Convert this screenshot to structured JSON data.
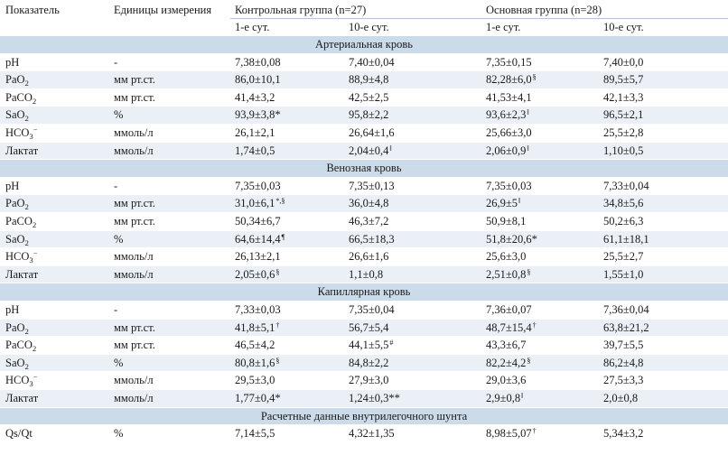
{
  "header": {
    "col_indicator": "Показатель",
    "col_units": "Единицы измерения",
    "group_control": "Контрольная группа (n=27)",
    "group_main": "Основная группа (n=28)",
    "day1": "1-е сут.",
    "day10": "10-е сут."
  },
  "sections": [
    {
      "title": "Артериальная кровь",
      "rows": [
        {
          "param": "pH",
          "sub": "",
          "sup": "",
          "unit": "-",
          "c1": "7,38±0,08",
          "c1m": "",
          "c10": "7,40±0,04",
          "c10m": "",
          "m1": "7,35±0,15",
          "m1m": "",
          "m10": "7,40±0,0",
          "m10m": ""
        },
        {
          "param": "PaO",
          "sub": "2",
          "sup": "",
          "unit": "мм рт.ст.",
          "c1": "86,0±10,1",
          "c1m": "",
          "c10": "88,9±4,8",
          "c10m": "",
          "m1": "82,28±6,0",
          "m1m": "§",
          "m10": "89,5±5,7",
          "m10m": ""
        },
        {
          "param": "PaCO",
          "sub": "2",
          "sup": "",
          "unit": "мм рт.ст.",
          "c1": "41,4±3,2",
          "c1m": "",
          "c10": "42,5±2,5",
          "c10m": "",
          "m1": "41,53±4,1",
          "m1m": "",
          "m10": "42,1±3,3",
          "m10m": ""
        },
        {
          "param": "SaO",
          "sub": "2",
          "sup": "",
          "unit": "%",
          "c1": "93,9±3,8*",
          "c1m": "",
          "c10": "95,8±2,2",
          "c10m": "",
          "m1": "93,6±2,3",
          "m1m": "ǁ",
          "m10": "96,5±2,1",
          "m10m": ""
        },
        {
          "param": "HCO",
          "sub": "3",
          "sup": "−",
          "unit": "ммоль/л",
          "c1": "26,1±2,1",
          "c1m": "",
          "c10": "26,64±1,6",
          "c10m": "",
          "m1": "25,66±3,0",
          "m1m": "",
          "m10": "25,5±2,8",
          "m10m": ""
        },
        {
          "param": "Лактат",
          "sub": "",
          "sup": "",
          "unit": "ммоль/л",
          "c1": "1,74±0,5",
          "c1m": "",
          "c10": "2,04±0,4",
          "c10m": "ǁ",
          "m1": "2,06±0,9",
          "m1m": "ǁ",
          "m10": "1,10±0,5",
          "m10m": ""
        }
      ]
    },
    {
      "title": "Венозная кровь",
      "rows": [
        {
          "param": "pH",
          "sub": "",
          "sup": "",
          "unit": "-",
          "c1": "7,35±0,03",
          "c1m": "",
          "c10": "7,35±0,13",
          "c10m": "",
          "m1": "7,35±0,03",
          "m1m": "",
          "m10": "7,33±0,04",
          "m10m": ""
        },
        {
          "param": "PaO",
          "sub": "2",
          "sup": "",
          "unit": "мм рт.ст.",
          "c1": "31,0±6,1",
          "c1m": "*,§",
          "c10": "36,0±4,8",
          "c10m": "",
          "m1": "26,9±5",
          "m1m": "ǁ",
          "m10": "34,8±5,6",
          "m10m": ""
        },
        {
          "param": "PaCO",
          "sub": "2",
          "sup": "",
          "unit": "мм рт.ст.",
          "c1": "50,34±6,7",
          "c1m": "",
          "c10": "46,3±7,2",
          "c10m": "",
          "m1": "50,9±8,1",
          "m1m": "",
          "m10": "50,2±6,3",
          "m10m": ""
        },
        {
          "param": "SaO",
          "sub": "2",
          "sup": "",
          "unit": "%",
          "c1": "64,6±14,4",
          "c1m": "¶",
          "c10": "66,5±18,3",
          "c10m": "",
          "m1": "51,8±20,6*",
          "m1m": "",
          "m10": "61,1±18,1",
          "m10m": ""
        },
        {
          "param": "HCO",
          "sub": "3",
          "sup": "−",
          "unit": "ммоль/л",
          "c1": "26,13±2,1",
          "c1m": "",
          "c10": "26,6±1,6",
          "c10m": "",
          "m1": "25,6±3,0",
          "m1m": "",
          "m10": "25,5±2,7",
          "m10m": ""
        },
        {
          "param": "Лактат",
          "sub": "",
          "sup": "",
          "unit": "ммоль/л",
          "c1": "2,05±0,6",
          "c1m": "§",
          "c10": "1,1±0,8",
          "c10m": "",
          "m1": "2,51±0,8",
          "m1m": "§",
          "m10": "1,55±1,0",
          "m10m": ""
        }
      ]
    },
    {
      "title": "Капиллярная кровь",
      "rows": [
        {
          "param": "pH",
          "sub": "",
          "sup": "",
          "unit": "-",
          "c1": "7,33±0,03",
          "c1m": "",
          "c10": "7,35±0,04",
          "c10m": "",
          "m1": "7,36±0,07",
          "m1m": "",
          "m10": "7,36±0,04",
          "m10m": ""
        },
        {
          "param": "PaO",
          "sub": "2",
          "sup": "",
          "unit": "мм рт.ст.",
          "c1": "41,8±5,1",
          "c1m": "†",
          "c10": "56,7±5,4",
          "c10m": "",
          "m1": "48,7±15,4",
          "m1m": "†",
          "m10": "63,8±21,2",
          "m10m": ""
        },
        {
          "param": "PaCO",
          "sub": "2",
          "sup": "",
          "unit": "мм рт.ст.",
          "c1": "46,5±4,2",
          "c1m": "",
          "c10": "44,1±5,5",
          "c10m": "#",
          "m1": "43,3±6,7",
          "m1m": "",
          "m10": "39,7±5,5",
          "m10m": ""
        },
        {
          "param": "SaO",
          "sub": "2",
          "sup": "",
          "unit": "%",
          "c1": "80,8±1,6",
          "c1m": "§",
          "c10": "84,8±2,2",
          "c10m": "",
          "m1": "82,2±4,2",
          "m1m": "§",
          "m10": "86,2±4,8",
          "m10m": ""
        },
        {
          "param": "HCO",
          "sub": "3",
          "sup": "−",
          "unit": "ммоль/л",
          "c1": "29,5±3,0",
          "c1m": "",
          "c10": "27,9±3,0",
          "c10m": "",
          "m1": "29,0±3,6",
          "m1m": "",
          "m10": "27,5±3,3",
          "m10m": ""
        },
        {
          "param": "Лактат",
          "sub": "",
          "sup": "",
          "unit": "ммоль/л",
          "c1": "1,77±0,4*",
          "c1m": "",
          "c10": "1,24±0,3**",
          "c10m": "",
          "m1": "2,9±0,8",
          "m1m": "ǁ",
          "m10": "2,0±0,8",
          "m10m": ""
        }
      ]
    },
    {
      "title": "Расчетные данные внутрилегочного шунта",
      "rows": [
        {
          "param": "Qs/Qt",
          "sub": "",
          "sup": "",
          "unit": "%",
          "c1": "7,14±5,5",
          "c1m": "",
          "c10": "4,32±1,35",
          "c10m": "",
          "m1": "8,98±5,07",
          "m1m": "†",
          "m10": "5,34±3,2",
          "m10m": ""
        }
      ]
    }
  ],
  "colors": {
    "section_band": "#ccdbe9",
    "stripe": "#eaf0f6",
    "text": "#1a1a1a"
  }
}
